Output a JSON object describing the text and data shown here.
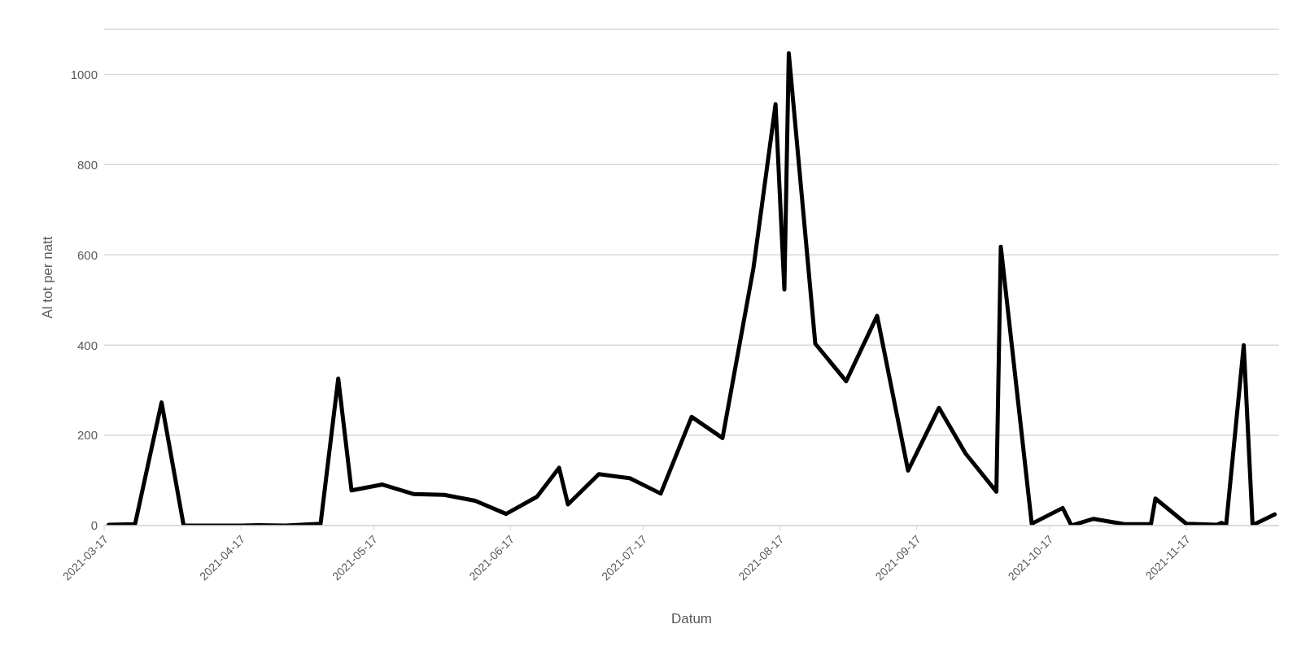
{
  "chart_data": {
    "type": "line",
    "xlabel": "Datum",
    "ylabel": "Al tot per natt",
    "x": [
      "2021-03-18",
      "2021-03-24",
      "2021-03-30",
      "2021-04-04",
      "2021-04-17",
      "2021-04-21",
      "2021-04-27",
      "2021-05-05",
      "2021-05-09",
      "2021-05-12",
      "2021-05-19",
      "2021-05-26",
      "2021-06-02",
      "2021-06-09",
      "2021-06-16",
      "2021-06-23",
      "2021-06-28",
      "2021-06-30",
      "2021-07-07",
      "2021-07-14",
      "2021-07-21",
      "2021-07-28",
      "2021-08-04",
      "2021-08-11",
      "2021-08-16",
      "2021-08-18",
      "2021-08-19",
      "2021-08-25",
      "2021-09-01",
      "2021-09-08",
      "2021-09-15",
      "2021-09-22",
      "2021-09-28",
      "2021-10-05",
      "2021-10-06",
      "2021-10-13",
      "2021-10-20",
      "2021-10-22",
      "2021-10-27",
      "2021-11-03",
      "2021-11-09",
      "2021-11-10",
      "2021-11-17",
      "2021-11-24",
      "2021-11-25",
      "2021-11-26",
      "2021-11-30",
      "2021-12-02",
      "2021-12-07"
    ],
    "series": [
      {
        "color": "#000000",
        "values": [
          2,
          3,
          273,
          0,
          0,
          1,
          0,
          4,
          326,
          78,
          91,
          70,
          68,
          55,
          26,
          64,
          128,
          47,
          114,
          105,
          71,
          241,
          194,
          571,
          934,
          523,
          1047,
          403,
          320,
          465,
          122,
          261,
          160,
          75,
          618,
          4,
          39,
          0,
          15,
          3,
          3,
          60,
          4,
          2,
          6,
          0,
          400,
          1,
          25
        ]
      }
    ],
    "xlim": [
      "2021-03-17",
      "2021-12-08"
    ],
    "xticks": [
      "2021-03-17",
      "2021-04-17",
      "2021-05-17",
      "2021-06-17",
      "2021-07-17",
      "2021-08-17",
      "2021-09-17",
      "2021-10-17",
      "2021-11-17"
    ],
    "ylim": [
      0,
      1100
    ],
    "yticks": [
      0,
      200,
      400,
      600,
      800,
      1000
    ],
    "grid": "y",
    "legend": false,
    "marker": "none",
    "line_style": "solid"
  }
}
